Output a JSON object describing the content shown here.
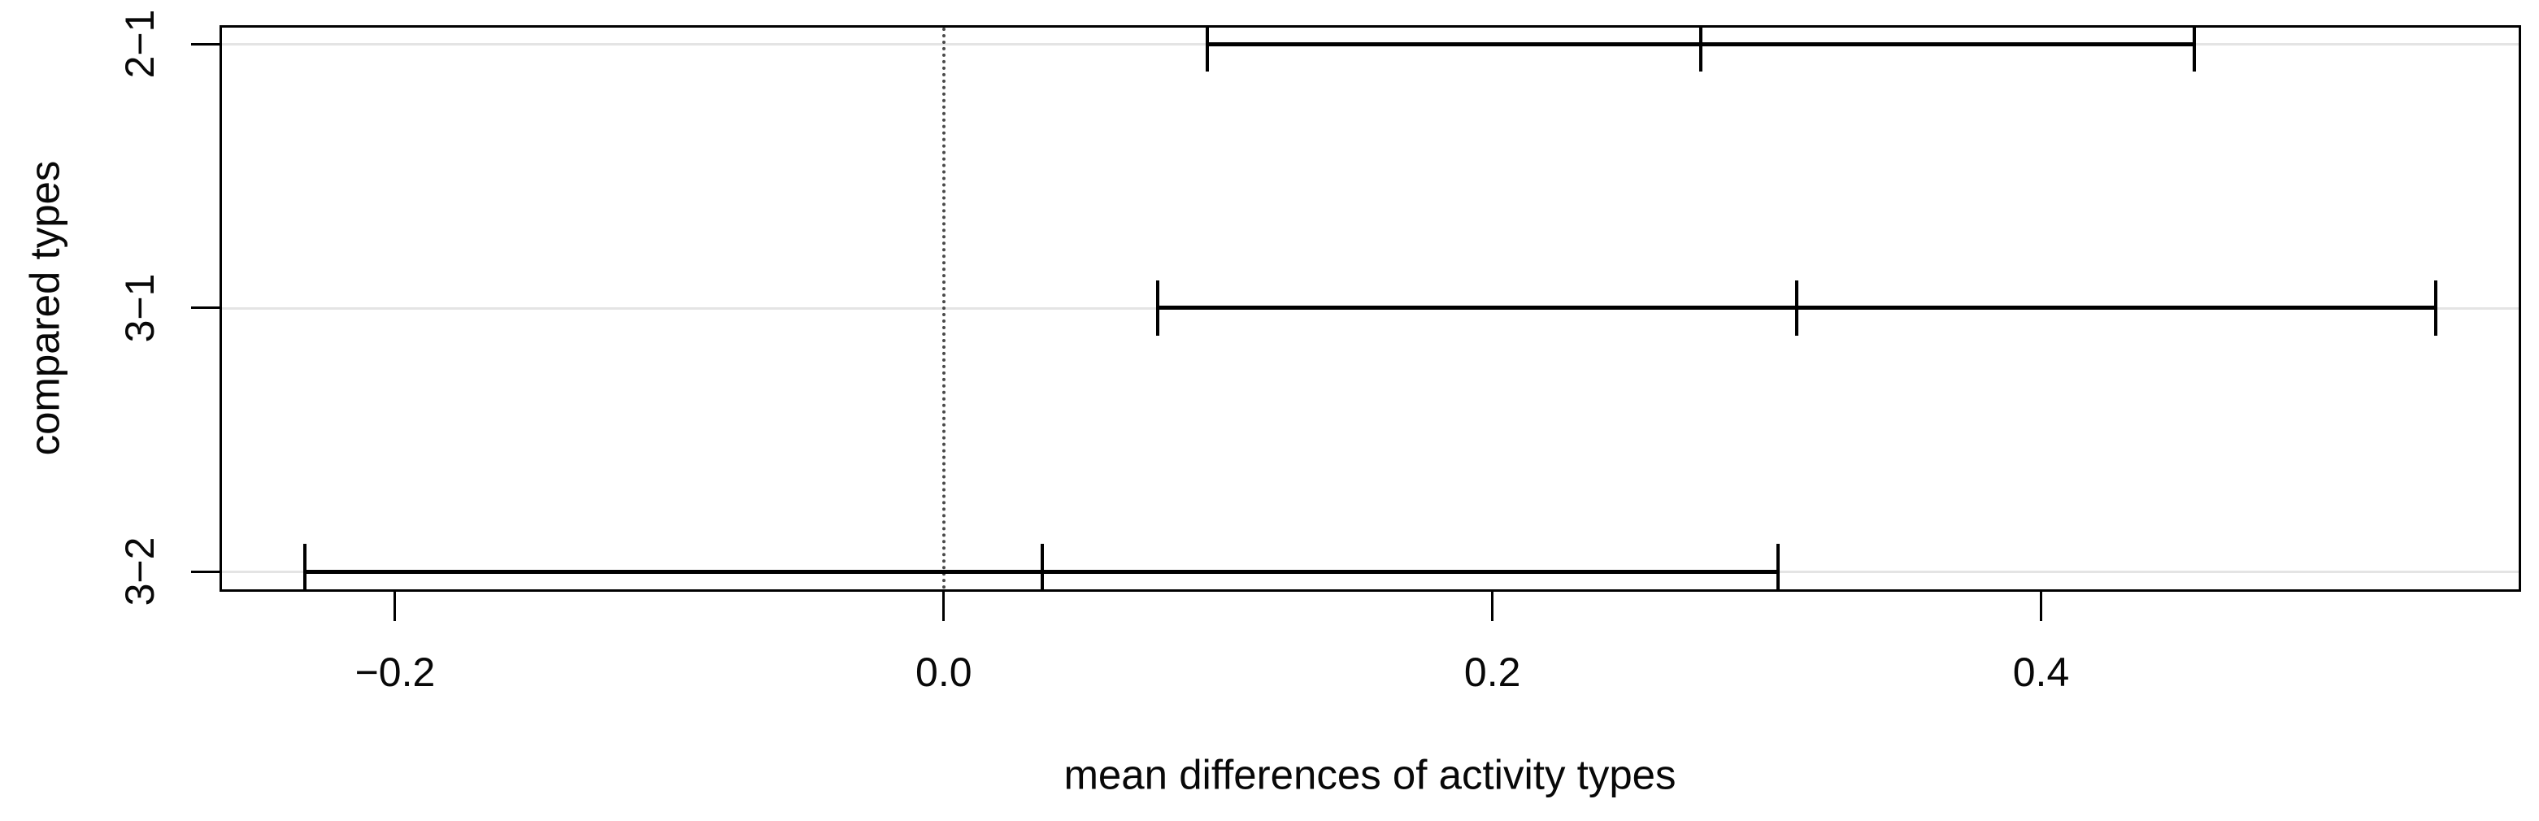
{
  "figure": {
    "background": "#ffffff",
    "axis_color": "#000000",
    "interval_color": "#000000",
    "grid_color": "#e4e4e4",
    "reference_line_color": "#4a4a4a"
  },
  "chart_data": {
    "type": "errorbar",
    "orientation": "horizontal",
    "title": "",
    "xlabel": "mean differences of activity types",
    "ylabel": "compared types",
    "categories": [
      "2−1",
      "3−1",
      "3−2"
    ],
    "rows": [
      {
        "label": "2−1",
        "diff": 0.276,
        "lwr": 0.096,
        "upr": 0.456
      },
      {
        "label": "3−1",
        "diff": 0.311,
        "lwr": 0.078,
        "upr": 0.544
      },
      {
        "label": "3−2",
        "diff": 0.036,
        "lwr": -0.233,
        "upr": 0.304
      }
    ],
    "x_ticks": [
      {
        "label": "−0.2",
        "value": -0.2
      },
      {
        "label": "0.0",
        "value": 0.0
      },
      {
        "label": "0.2",
        "value": 0.2
      },
      {
        "label": "0.4",
        "value": 0.4
      }
    ],
    "xlim": [
      -0.264,
      0.575
    ],
    "reference_line": {
      "value": 0.0,
      "style": "dotted"
    },
    "grid": "horizontal",
    "legend": "none"
  }
}
